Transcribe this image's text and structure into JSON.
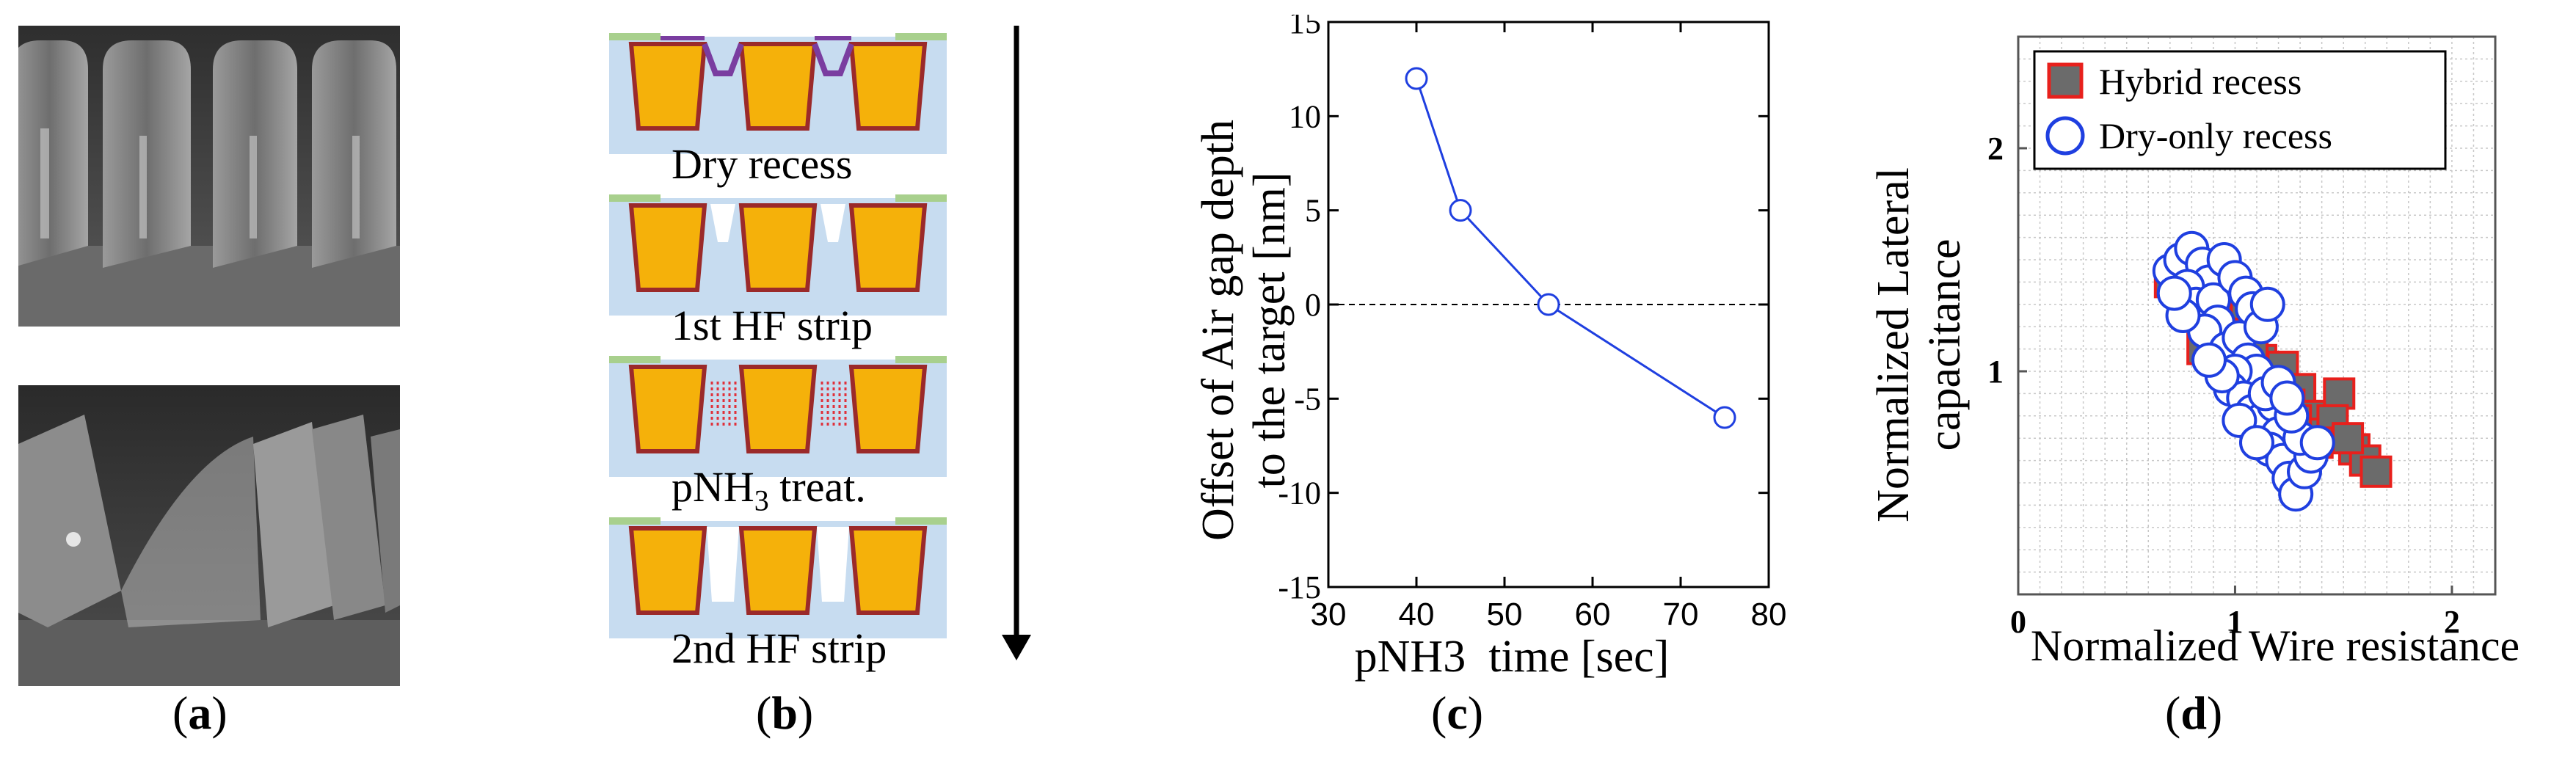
{
  "captions": {
    "a": "a",
    "b": "b",
    "c": "c",
    "d": "d"
  },
  "panel_b": {
    "steps": [
      {
        "label": "Dry recess"
      },
      {
        "label": "1st HF strip"
      },
      {
        "label_main": "pNH",
        "label_sub": "3",
        "label_rest": " treat."
      },
      {
        "label": "2nd HF strip"
      }
    ],
    "colors": {
      "dielectric": "#c7dcf0",
      "metal": "#f5b10a",
      "barrier": "#9b2a2a",
      "cap": "#a8d08d",
      "liner": "#7a3da0",
      "treat": "#e0303a"
    }
  },
  "chart_data": [
    {
      "type": "line",
      "id": "c",
      "x": [
        40,
        45,
        55,
        75
      ],
      "y": [
        12,
        5,
        0,
        -6
      ],
      "xlabel": "pNH3  time [sec]",
      "ylabel_line1": "Offset of Air gap depth",
      "ylabel_line2": "to the target [nm]",
      "xlim": [
        30,
        80
      ],
      "ylim": [
        -15,
        15
      ],
      "xticks": [
        "30",
        "40",
        "50",
        "60",
        "70",
        "80"
      ],
      "yticks": [
        "15",
        "10",
        "5",
        "0",
        "-5",
        "-10",
        "-15"
      ],
      "reference_line_y": 0,
      "color": "#1f3fe0"
    },
    {
      "type": "scatter",
      "id": "d",
      "xlabel": "Normalized Wire resistance",
      "ylabel_line1": "Normalized Lateral",
      "ylabel_line2": "capacitance",
      "xlim": [
        0,
        2.2
      ],
      "ylim": [
        0,
        2.5
      ],
      "xticks": [
        "0",
        "1",
        "2"
      ],
      "yticks": [
        "2",
        "1"
      ],
      "legend_position": "top-left",
      "series": [
        {
          "name": "Hybrid recess",
          "marker": "square",
          "fill": "#6b6b6b",
          "edge": "#e8201c",
          "points": [
            [
              0.75,
              1.36
            ],
            [
              0.82,
              1.3
            ],
            [
              0.88,
              1.22
            ],
            [
              0.85,
              1.1
            ],
            [
              0.95,
              1.25
            ],
            [
              1.0,
              1.18
            ],
            [
              1.05,
              1.3
            ],
            [
              1.1,
              1.22
            ],
            [
              1.12,
              1.05
            ],
            [
              0.92,
              1.15
            ],
            [
              0.78,
              1.26
            ],
            [
              1.18,
              0.95
            ],
            [
              1.22,
              1.02
            ],
            [
              1.3,
              0.92
            ],
            [
              1.25,
              0.85
            ],
            [
              1.35,
              0.8
            ],
            [
              1.4,
              0.72
            ],
            [
              1.48,
              0.9
            ],
            [
              1.45,
              0.78
            ],
            [
              1.55,
              0.65
            ],
            [
              1.6,
              0.6
            ],
            [
              1.65,
              0.55
            ],
            [
              1.52,
              0.7
            ],
            [
              1.38,
              0.68
            ],
            [
              1.15,
              0.88
            ],
            [
              1.08,
              1.1
            ],
            [
              0.7,
              1.4
            ],
            [
              1.28,
              0.78
            ]
          ]
        },
        {
          "name": "Dry-only recess",
          "marker": "circle",
          "fill": "#ffffff",
          "edge": "#1f3fe0",
          "points": [
            [
              0.7,
              1.45
            ],
            [
              0.75,
              1.5
            ],
            [
              0.8,
              1.55
            ],
            [
              0.85,
              1.48
            ],
            [
              0.88,
              1.4
            ],
            [
              0.78,
              1.38
            ],
            [
              0.82,
              1.3
            ],
            [
              0.9,
              1.32
            ],
            [
              0.95,
              1.5
            ],
            [
              1.0,
              1.42
            ],
            [
              1.05,
              1.35
            ],
            [
              1.08,
              1.28
            ],
            [
              0.92,
              1.22
            ],
            [
              0.86,
              1.18
            ],
            [
              0.96,
              1.1
            ],
            [
              1.02,
              1.15
            ],
            [
              1.06,
              1.05
            ],
            [
              1.1,
              1.0
            ],
            [
              1.12,
              1.2
            ],
            [
              1.15,
              1.3
            ],
            [
              1.0,
              1.0
            ],
            [
              0.98,
              0.92
            ],
            [
              1.04,
              0.88
            ],
            [
              1.08,
              0.82
            ],
            [
              1.12,
              0.78
            ],
            [
              1.18,
              0.85
            ],
            [
              1.2,
              0.72
            ],
            [
              1.16,
              0.65
            ],
            [
              1.22,
              0.6
            ],
            [
              1.25,
              0.52
            ],
            [
              1.28,
              0.45
            ],
            [
              1.32,
              0.55
            ],
            [
              1.35,
              0.62
            ],
            [
              1.3,
              0.7
            ],
            [
              1.26,
              0.8
            ],
            [
              1.14,
              0.9
            ],
            [
              1.02,
              0.78
            ],
            [
              0.94,
              0.98
            ],
            [
              0.88,
              1.05
            ],
            [
              0.76,
              1.25
            ],
            [
              0.72,
              1.35
            ],
            [
              1.2,
              0.95
            ],
            [
              1.1,
              0.68
            ],
            [
              1.38,
              0.68
            ],
            [
              1.24,
              0.88
            ]
          ]
        }
      ]
    }
  ]
}
